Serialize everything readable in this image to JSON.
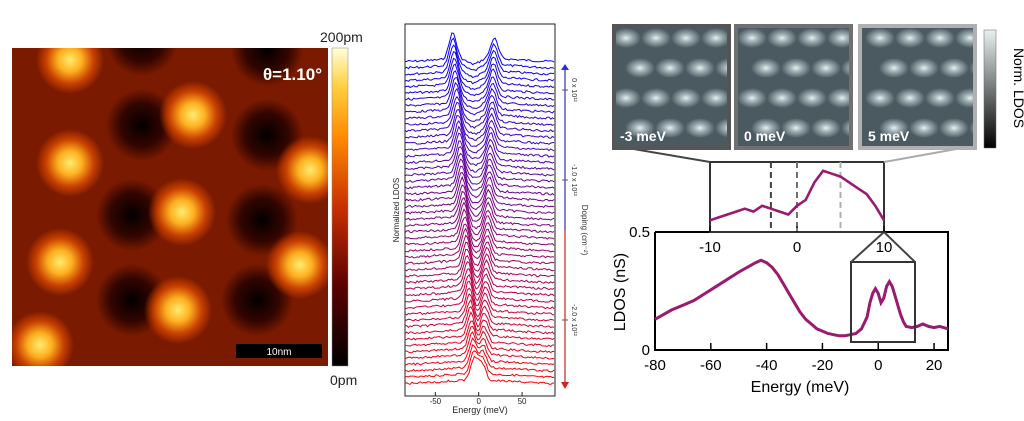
{
  "chart_data": [
    {
      "type": "heatmap",
      "annotation": "θ=1.10°",
      "scalebar_label": "10nm",
      "colorbar": {
        "max_label": "200pm",
        "min_label": "0pm",
        "range": [
          0,
          200
        ]
      },
      "colormap": [
        "#000000",
        "#3a0000",
        "#8a1400",
        "#d24a00",
        "#ff9a10",
        "#ffe060",
        "#ffffd8"
      ]
    },
    {
      "type": "line",
      "xlabel": "Energy (meV)",
      "ylabel": "Normalized LDOS",
      "xticks": [
        -50,
        0,
        50
      ],
      "xlim": [
        -85,
        88
      ],
      "doping_axis": {
        "label": "Doping (cm⁻²)",
        "ticks": [
          "0 x 10¹²",
          "-1.0 x 10¹²",
          "-2.0 x 10¹²"
        ]
      },
      "n_traces": 52,
      "peak_energies": [
        -30,
        18
      ],
      "color_top": "#0000ff",
      "color_bottom": "#ff0000"
    },
    {
      "type": "line",
      "xlabel": "Energy (meV)",
      "ylabel": "LDOS (nS)",
      "xlim": [
        -80,
        25
      ],
      "ylim": [
        0,
        0.5
      ],
      "xticks": [
        -80,
        -60,
        -40,
        -20,
        0,
        20
      ],
      "yticks": [
        0,
        0.5
      ],
      "color": "#9b1a70",
      "series": [
        {
          "x": [
            -80,
            -77,
            -74,
            -70,
            -66,
            -62,
            -58,
            -54,
            -50,
            -47,
            -44,
            -42,
            -40,
            -38,
            -36,
            -34,
            -32,
            -30,
            -28,
            -26,
            -24,
            -22,
            -20,
            -18,
            -16,
            -14,
            -12,
            -10,
            -8,
            -6,
            -4,
            -3,
            -2,
            -1,
            0,
            1,
            2,
            3,
            4,
            5,
            6,
            7,
            8,
            9,
            10,
            12,
            14,
            16,
            18,
            20,
            22,
            25
          ],
          "y": [
            0.13,
            0.15,
            0.17,
            0.19,
            0.21,
            0.24,
            0.27,
            0.3,
            0.33,
            0.35,
            0.37,
            0.38,
            0.37,
            0.35,
            0.32,
            0.28,
            0.24,
            0.2,
            0.16,
            0.13,
            0.11,
            0.09,
            0.08,
            0.07,
            0.065,
            0.06,
            0.06,
            0.065,
            0.07,
            0.09,
            0.14,
            0.2,
            0.24,
            0.26,
            0.24,
            0.2,
            0.22,
            0.27,
            0.29,
            0.27,
            0.23,
            0.19,
            0.15,
            0.12,
            0.1,
            0.095,
            0.1,
            0.11,
            0.1,
            0.095,
            0.1,
            0.09
          ]
        }
      ],
      "inset": {
        "xlim": [
          -10,
          10
        ],
        "xticks": [
          -10,
          0,
          10
        ],
        "dashed_lines": [
          -3,
          0,
          5
        ],
        "x": [
          -10,
          -9,
          -8,
          -7,
          -6,
          -5,
          -4,
          -3,
          -2,
          -1,
          0,
          1,
          2,
          3,
          4,
          5,
          6,
          7,
          8,
          9,
          10
        ],
        "y": [
          0.12,
          0.13,
          0.14,
          0.15,
          0.16,
          0.15,
          0.17,
          0.16,
          0.15,
          0.14,
          0.17,
          0.19,
          0.25,
          0.29,
          0.28,
          0.27,
          0.25,
          0.23,
          0.21,
          0.17,
          0.12
        ]
      },
      "maps": [
        {
          "label": "-3 meV",
          "frame_color": "#444444"
        },
        {
          "label": "0 meV",
          "frame_color": "#707070"
        },
        {
          "label": "5 meV",
          "frame_color": "#b0b0b0"
        }
      ],
      "colorbar_label": "Norm. LDOS"
    }
  ]
}
